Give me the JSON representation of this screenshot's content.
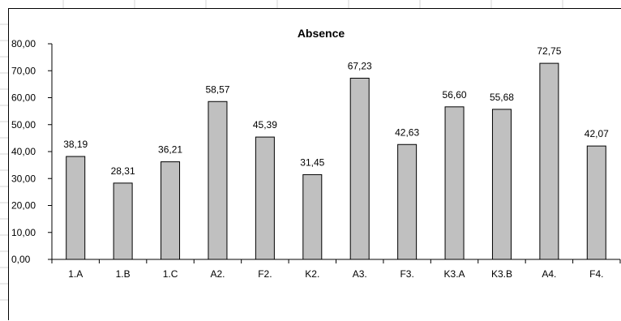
{
  "chart_data": {
    "type": "bar",
    "title": "Absence",
    "categories": [
      "1.A",
      "1.B",
      "1.C",
      "A2.",
      "F2.",
      "K2.",
      "A3.",
      "F3.",
      "K3.A",
      "K3.B",
      "A4.",
      "F4."
    ],
    "values": [
      38.19,
      28.31,
      36.21,
      58.57,
      45.39,
      31.45,
      67.23,
      42.63,
      56.6,
      55.68,
      72.75,
      42.07
    ],
    "data_labels": [
      "38,19",
      "28,31",
      "36,21",
      "58,57",
      "45,39",
      "31,45",
      "67,23",
      "42,63",
      "56,60",
      "55,68",
      "72,75",
      "42,07"
    ],
    "y_ticks": [
      0,
      10,
      20,
      30,
      40,
      50,
      60,
      70,
      80
    ],
    "y_tick_labels": [
      "0,00",
      "10,00",
      "20,00",
      "30,00",
      "40,00",
      "50,00",
      "60,00",
      "70,00",
      "80,00"
    ],
    "ylim": [
      0,
      80
    ],
    "grid": false,
    "legend": "none",
    "bar_color": "#c0c0c0",
    "bar_edge_color": "#000000"
  }
}
